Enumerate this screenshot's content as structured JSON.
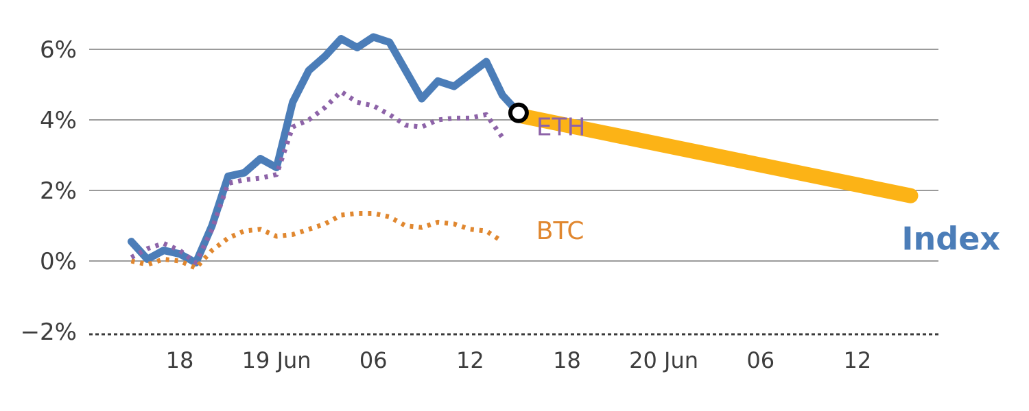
{
  "chart_data": {
    "type": "line",
    "title": "",
    "xlabel": "",
    "ylabel": "",
    "x_unit": "hours (t=0 at 18 Jun 12:00)",
    "grid": "horizontal",
    "grid_color": "#9b9b9b",
    "tick_color": "#3d3d3d",
    "axis": {
      "baseline_v": -2,
      "baseline_style": "dashed",
      "baseline_color": "#3a3a3a"
    },
    "ylim": [
      -2.6,
      6.8
    ],
    "y_ticks": [
      {
        "v": 6,
        "label": "6%"
      },
      {
        "v": 4,
        "label": "4%"
      },
      {
        "v": 2,
        "label": "2%"
      },
      {
        "v": 0,
        "label": "0%"
      },
      {
        "v": -2,
        "label": "−2%"
      }
    ],
    "x_ticks": [
      {
        "t": 6,
        "label": "18"
      },
      {
        "t": 12,
        "label": "19 Jun"
      },
      {
        "t": 18,
        "label": "06"
      },
      {
        "t": 24,
        "label": "12"
      },
      {
        "t": 30,
        "label": "18"
      },
      {
        "t": 36,
        "label": "20 Jun"
      },
      {
        "t": 42,
        "label": "06"
      },
      {
        "t": 48,
        "label": "12"
      }
    ],
    "series": [
      {
        "name": "Index",
        "color": "#4b7db8",
        "line": "solid",
        "width": 11,
        "x": [
          3,
          4,
          5,
          6,
          7,
          8,
          9,
          10,
          11,
          12,
          13,
          14,
          15,
          16,
          17,
          18,
          19,
          20,
          21,
          22,
          23,
          24,
          25,
          26,
          27
        ],
        "values": [
          0.55,
          0.05,
          0.3,
          0.2,
          -0.05,
          1.0,
          2.4,
          2.5,
          2.9,
          2.65,
          4.5,
          5.4,
          5.8,
          6.3,
          6.05,
          6.35,
          6.2,
          5.4,
          4.6,
          5.1,
          4.95,
          5.3,
          5.65,
          4.7,
          4.2
        ],
        "label": {
          "text": "Index",
          "t": 53.8,
          "v": 0.55,
          "size": 46,
          "weight": "bold",
          "anchor": "middle"
        }
      },
      {
        "name": "ETH",
        "color": "#8d63a8",
        "line": "dotted",
        "width": 7,
        "x": [
          3,
          4,
          5,
          6,
          7,
          8,
          9,
          10,
          11,
          12,
          13,
          14,
          15,
          16,
          17,
          18,
          19,
          20,
          21,
          22,
          23,
          24,
          25,
          26
        ],
        "values": [
          0.1,
          0.35,
          0.5,
          0.3,
          -0.05,
          0.9,
          2.2,
          2.3,
          2.35,
          2.45,
          3.8,
          4.0,
          4.35,
          4.8,
          4.5,
          4.4,
          4.15,
          3.85,
          3.8,
          4.0,
          4.05,
          4.05,
          4.15,
          3.5
        ],
        "label": {
          "text": "ETH",
          "t": 28.1,
          "v": 3.8,
          "size": 36,
          "weight": "normal",
          "anchor": "start"
        }
      },
      {
        "name": "BTC",
        "color": "#e0872f",
        "line": "dotted",
        "width": 7,
        "x": [
          3,
          4,
          5,
          6,
          7,
          8,
          9,
          10,
          11,
          12,
          13,
          14,
          15,
          16,
          17,
          18,
          19,
          20,
          21,
          22,
          23,
          24,
          25,
          26
        ],
        "values": [
          0.0,
          -0.1,
          0.05,
          0.0,
          -0.2,
          0.3,
          0.65,
          0.85,
          0.9,
          0.7,
          0.75,
          0.9,
          1.05,
          1.3,
          1.35,
          1.35,
          1.25,
          1.0,
          0.95,
          1.1,
          1.05,
          0.9,
          0.85,
          0.55
        ],
        "label": {
          "text": "BTC",
          "t": 28.1,
          "v": 0.85,
          "size": 36,
          "weight": "normal",
          "anchor": "start"
        }
      }
    ],
    "projection": {
      "name": "Index projection band",
      "color": "#fcb316",
      "width": 22,
      "from": {
        "t": 27.3,
        "v": 4.1
      },
      "to": {
        "t": 51.3,
        "v": 1.85
      }
    },
    "marker": {
      "t": 27,
      "v": 4.2,
      "radius": 12,
      "fill": "#ffffff",
      "stroke": "#000000",
      "stroke_width": 6
    }
  }
}
